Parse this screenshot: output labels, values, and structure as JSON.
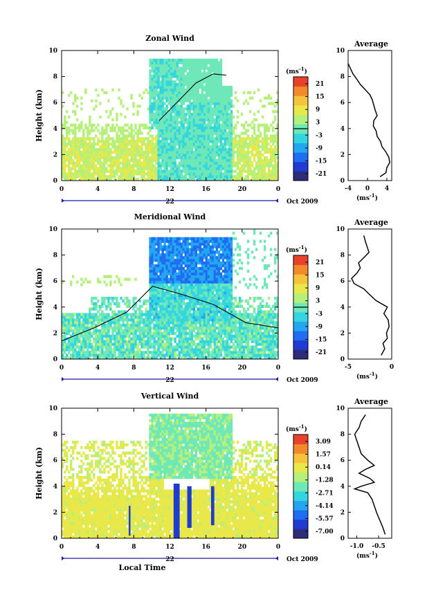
{
  "chart_data": [
    {
      "type": "heatmap",
      "title": "Zonal Wind",
      "xlabel": "",
      "ylabel": "Height (km)",
      "xlim": [
        0,
        24
      ],
      "ylim": [
        0,
        10
      ],
      "xticks": [
        "0",
        "4",
        "8",
        "12",
        "16",
        "20",
        "0"
      ],
      "yticks": [
        "0",
        "2",
        "4",
        "6",
        "8",
        "10"
      ],
      "date_day": "22",
      "date_label": "Oct 2009",
      "colorbar": {
        "unit": "(ms",
        "unit_sup": "-1",
        "ticks": [
          "21",
          "15",
          "9",
          "3",
          "-3",
          "-9",
          "-15",
          "-21"
        ],
        "zero_line": true
      },
      "profile": {
        "title": "Average",
        "xlabel": "(ms",
        "xlabel_sup": "-1",
        "xlim": [
          -4,
          5
        ],
        "xticks": [
          "-4",
          "0",
          "4"
        ],
        "xtick_values": [
          -4,
          0,
          4
        ],
        "yticks": [
          "0",
          "2",
          "4",
          "6",
          "8",
          "10"
        ],
        "heights": [
          0.3,
          0.6,
          1.0,
          1.4,
          1.8,
          2.2,
          2.6,
          3.0,
          3.4,
          3.8,
          4.2,
          4.6,
          5.0,
          5.4,
          5.8,
          6.2,
          6.6,
          7.0,
          7.4,
          7.8,
          8.2,
          8.6,
          9.0
        ],
        "values": [
          2.6,
          3.8,
          4.0,
          4.6,
          4.4,
          3.8,
          3.0,
          2.7,
          2.0,
          1.8,
          1.2,
          1.3,
          2.0,
          1.6,
          1.3,
          1.0,
          0.5,
          -0.5,
          -1.5,
          -2.2,
          -3.0,
          -3.5,
          -4.0
        ]
      }
    },
    {
      "type": "heatmap",
      "title": "Meridional Wind",
      "xlabel": "",
      "ylabel": "Height (km)",
      "xlim": [
        0,
        24
      ],
      "ylim": [
        0,
        10
      ],
      "xticks": [
        "0",
        "4",
        "8",
        "12",
        "16",
        "20",
        "0"
      ],
      "yticks": [
        "0",
        "2",
        "4",
        "6",
        "8",
        "10"
      ],
      "date_day": "22",
      "date_label": "Oct 2009",
      "colorbar": {
        "unit": "(ms",
        "unit_sup": "-1",
        "ticks": [
          "21",
          "15",
          "9",
          "3",
          "-3",
          "-9",
          "-15",
          "-21"
        ],
        "zero_line": true
      },
      "profile": {
        "title": "Average",
        "xlabel": "(ms",
        "xlabel_sup": "-1",
        "xlim": [
          -5,
          0
        ],
        "xticks": [
          "-5",
          "0"
        ],
        "xtick_values": [
          -5,
          0
        ],
        "yticks": [
          "0",
          "2",
          "4",
          "6",
          "8",
          "10"
        ],
        "heights": [
          0.3,
          0.8,
          1.2,
          1.6,
          2.0,
          2.5,
          3.0,
          3.5,
          4.0,
          4.5,
          5.0,
          5.4,
          5.8,
          6.2,
          6.6,
          7.0,
          7.4,
          7.8,
          8.2,
          8.6,
          9.0,
          9.5
        ],
        "values": [
          -1.2,
          -0.8,
          -1.0,
          -0.5,
          -0.6,
          -0.3,
          -0.4,
          -0.9,
          -0.5,
          -1.8,
          -2.6,
          -3.2,
          -4.3,
          -4.6,
          -4.0,
          -3.6,
          -3.8,
          -3.2,
          -2.6,
          -2.8,
          -3.0,
          -3.2
        ]
      }
    },
    {
      "type": "heatmap",
      "title": "Vertical Wind",
      "xlabel": "Local Time",
      "ylabel": "Height (km)",
      "xlim": [
        0,
        24
      ],
      "ylim": [
        0,
        10
      ],
      "xticks": [
        "0",
        "4",
        "8",
        "12",
        "16",
        "20",
        "0"
      ],
      "yticks": [
        "0",
        "2",
        "4",
        "6",
        "8",
        "10"
      ],
      "date_day": "22",
      "date_label": "Oct 2009",
      "colorbar": {
        "unit": "(ms",
        "unit_sup": "-1",
        "ticks": [
          "3.09",
          "1.57",
          "0.14",
          "-1.28",
          "-2.71",
          "-4.14",
          "-5.57",
          "-7.00"
        ],
        "zero_line": false
      },
      "profile": {
        "title": "Average",
        "xlabel": "(ms",
        "xlabel_sup": "-1",
        "xlim": [
          -1.2,
          -0.2
        ],
        "xticks": [
          "-1.0",
          "-0.5"
        ],
        "xtick_values": [
          -1.0,
          -0.5
        ],
        "yticks": [
          "0",
          "2",
          "4",
          "6",
          "8",
          "10"
        ],
        "heights": [
          0.3,
          0.8,
          1.2,
          1.6,
          2.0,
          2.5,
          3.0,
          3.5,
          3.8,
          4.0,
          4.3,
          4.6,
          5.0,
          5.3,
          5.6,
          6.0,
          6.5,
          7.0,
          7.5,
          8.0,
          8.5,
          9.0,
          9.5
        ],
        "values": [
          -0.35,
          -0.4,
          -0.45,
          -0.5,
          -0.55,
          -0.6,
          -0.65,
          -0.75,
          -1.05,
          -0.9,
          -0.6,
          -0.7,
          -0.95,
          -0.8,
          -0.6,
          -0.75,
          -0.9,
          -0.95,
          -1.0,
          -1.05,
          -0.95,
          -0.9,
          -0.8
        ]
      }
    }
  ],
  "colors": {
    "scale": [
      "#2c2c7a",
      "#1f3bd1",
      "#1f6ef2",
      "#22a7f0",
      "#33d6e0",
      "#6fe8b8",
      "#b5f07a",
      "#e8e84a",
      "#f6c43a",
      "#f28a2c",
      "#e8422a"
    ],
    "axis_line": "#1a1aa0"
  }
}
